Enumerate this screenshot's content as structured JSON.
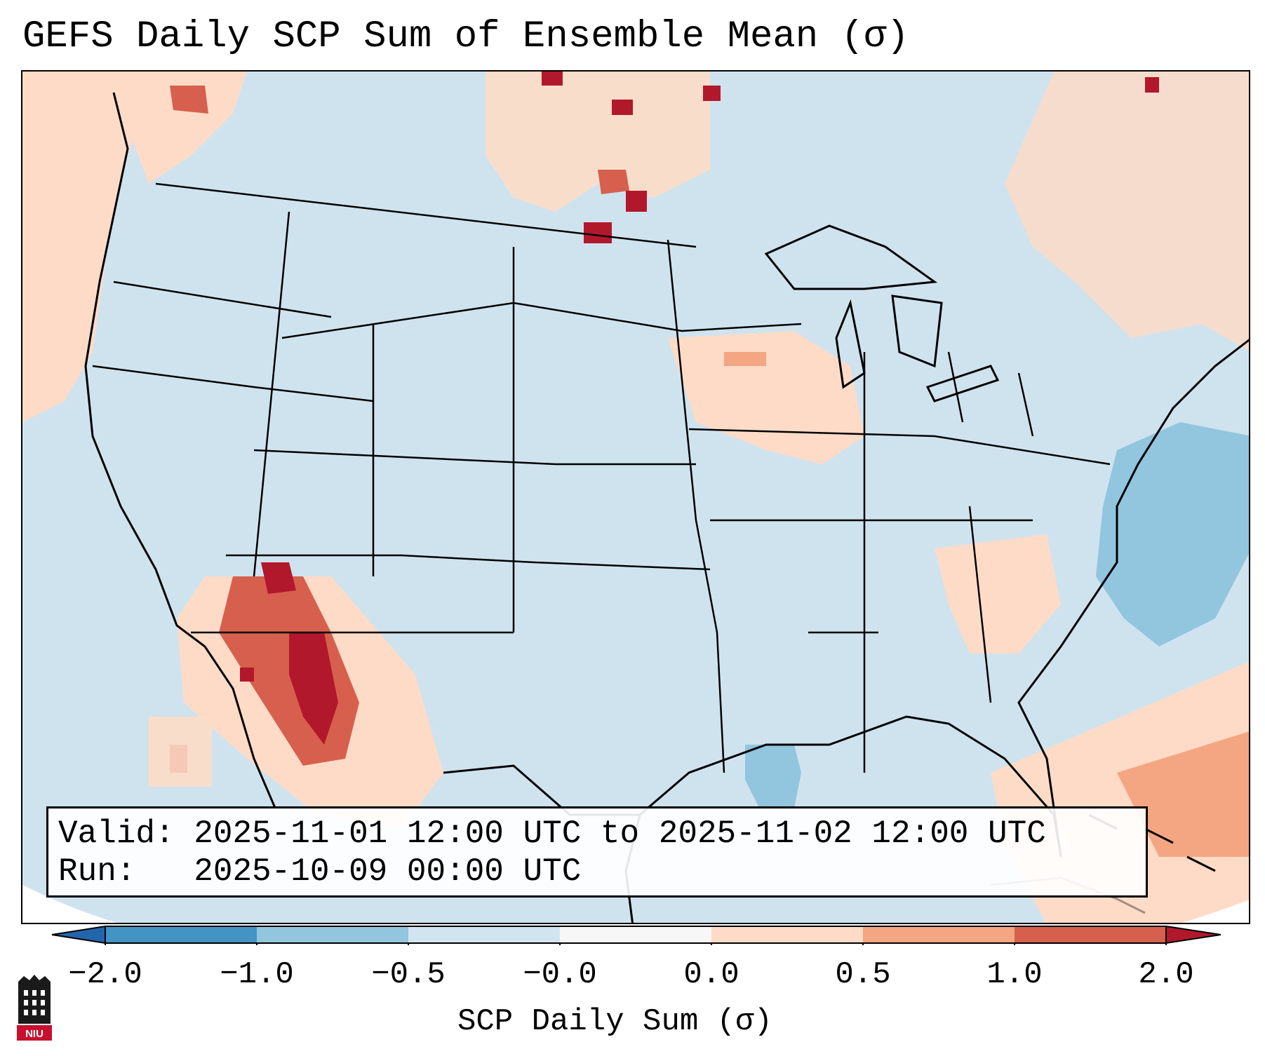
{
  "title": "GEFS Daily SCP Sum of Ensemble Mean (σ)",
  "info": {
    "valid": "Valid: 2025-11-01 12:00 UTC to 2025-11-02 12:00 UTC",
    "run": "Run:   2025-10-09 00:00 UTC"
  },
  "colorbar": {
    "label": "SCP Daily Sum (σ)",
    "ticks": [
      "−2.0",
      "−1.0",
      "−0.5",
      "−0.0",
      "0.0",
      "0.5",
      "1.0",
      "2.0"
    ],
    "bin_colors": [
      "#4393c3",
      "#92c5de",
      "#d1e5f0",
      "#f7f7f7",
      "#fddbc7",
      "#f4a582",
      "#d6604d",
      "#b2182b"
    ],
    "extend_min_color": "#2166ac",
    "extend_max_color": "#b2182b"
  },
  "map": {
    "background_value_color": "#d1e5f0",
    "features": [
      "continental-us",
      "state-borders",
      "great-lakes",
      "mexico",
      "canada",
      "cuba",
      "bahamas"
    ]
  },
  "logo": {
    "icon": "niu-tower-logo",
    "text": "NIU"
  }
}
